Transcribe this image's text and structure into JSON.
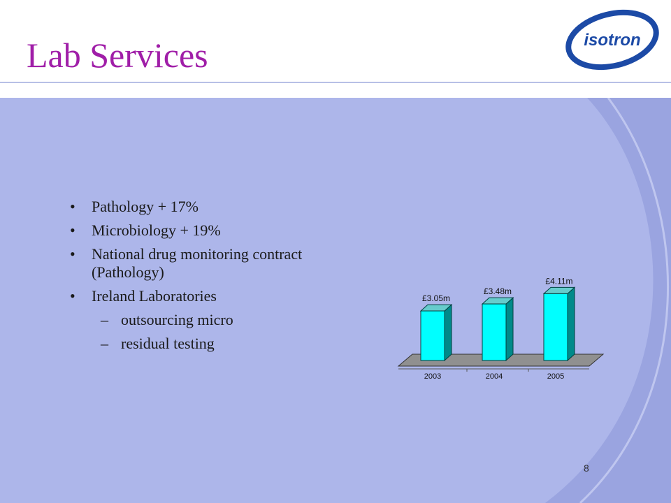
{
  "slide": {
    "title": "Lab Services",
    "page_number": "8",
    "logo_text": "isotron"
  },
  "bullets": [
    {
      "text": "Pathology + 17%",
      "level": 1
    },
    {
      "text": "Microbiology + 19%",
      "level": 1
    },
    {
      "text": "National drug monitoring contract (Pathology)",
      "level": 1
    },
    {
      "text": "Ireland Laboratories",
      "level": 1
    },
    {
      "text": "outsourcing micro",
      "level": 2
    },
    {
      "text": "residual testing",
      "level": 2
    }
  ],
  "colors": {
    "title": "#a01ea8",
    "panel": "#adb6ea",
    "swoosh": "#9aa4e0",
    "bar_front": "#00ffff",
    "bar_side": "#008a8a",
    "floor": "#909090"
  },
  "chart_data": {
    "type": "bar",
    "categories": [
      "2003",
      "2004",
      "2005"
    ],
    "values": [
      3.05,
      3.48,
      4.11
    ],
    "data_labels": [
      "£3.05m",
      "£3.48m",
      "£4.11m"
    ],
    "title": "",
    "xlabel": "",
    "ylabel": "",
    "ylim": [
      0,
      4.3
    ],
    "grid": false,
    "legend": "none",
    "style": "3d"
  }
}
